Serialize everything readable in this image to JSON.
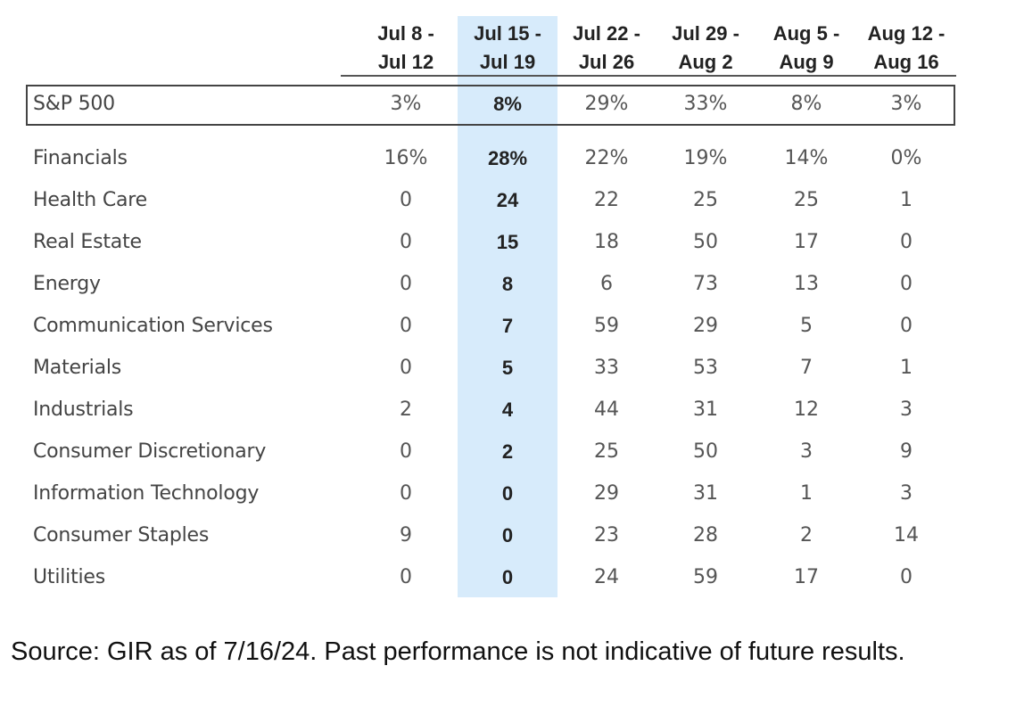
{
  "columns": [
    {
      "line1": "Jul 8 -",
      "line2": "Jul 12"
    },
    {
      "line1": "Jul 15 -",
      "line2": "Jul 19"
    },
    {
      "line1": "Jul 22 -",
      "line2": "Jul 26"
    },
    {
      "line1": "Jul 29 -",
      "line2": "Aug 2"
    },
    {
      "line1": "Aug 5 -",
      "line2": "Aug 9"
    },
    {
      "line1": "Aug 12 -",
      "line2": "Aug 16"
    }
  ],
  "highlight_column": "Jul 15 - Jul 19",
  "colors": {
    "highlight": "#d7ebfb",
    "border": "#444444"
  },
  "sp500": {
    "label": "S&P 500",
    "values": [
      "3%",
      "8%",
      "29%",
      "33%",
      "8%",
      "3%"
    ]
  },
  "sectors": [
    {
      "label": "Financials",
      "values": [
        "16%",
        "28%",
        "22%",
        "19%",
        "14%",
        "0%"
      ]
    },
    {
      "label": "Health Care",
      "values": [
        "0",
        "24",
        "22",
        "25",
        "25",
        "1"
      ]
    },
    {
      "label": "Real Estate",
      "values": [
        "0",
        "15",
        "18",
        "50",
        "17",
        "0"
      ]
    },
    {
      "label": "Energy",
      "values": [
        "0",
        "8",
        "6",
        "73",
        "13",
        "0"
      ]
    },
    {
      "label": "Communication Services",
      "values": [
        "0",
        "7",
        "59",
        "29",
        "5",
        "0"
      ]
    },
    {
      "label": "Materials",
      "values": [
        "0",
        "5",
        "33",
        "53",
        "7",
        "1"
      ]
    },
    {
      "label": "Industrials",
      "values": [
        "2",
        "4",
        "44",
        "31",
        "12",
        "3"
      ]
    },
    {
      "label": "Consumer Discretionary",
      "values": [
        "0",
        "2",
        "25",
        "50",
        "3",
        "9"
      ]
    },
    {
      "label": "Information Technology",
      "values": [
        "0",
        "0",
        "29",
        "31",
        "1",
        "3"
      ]
    },
    {
      "label": "Consumer Staples",
      "values": [
        "9",
        "0",
        "23",
        "28",
        "2",
        "14"
      ]
    },
    {
      "label": "Utilities",
      "values": [
        "0",
        "0",
        "24",
        "59",
        "17",
        "0"
      ]
    }
  ],
  "source": "Source: GIR as of 7/16/24. Past performance is not indicative of future results."
}
